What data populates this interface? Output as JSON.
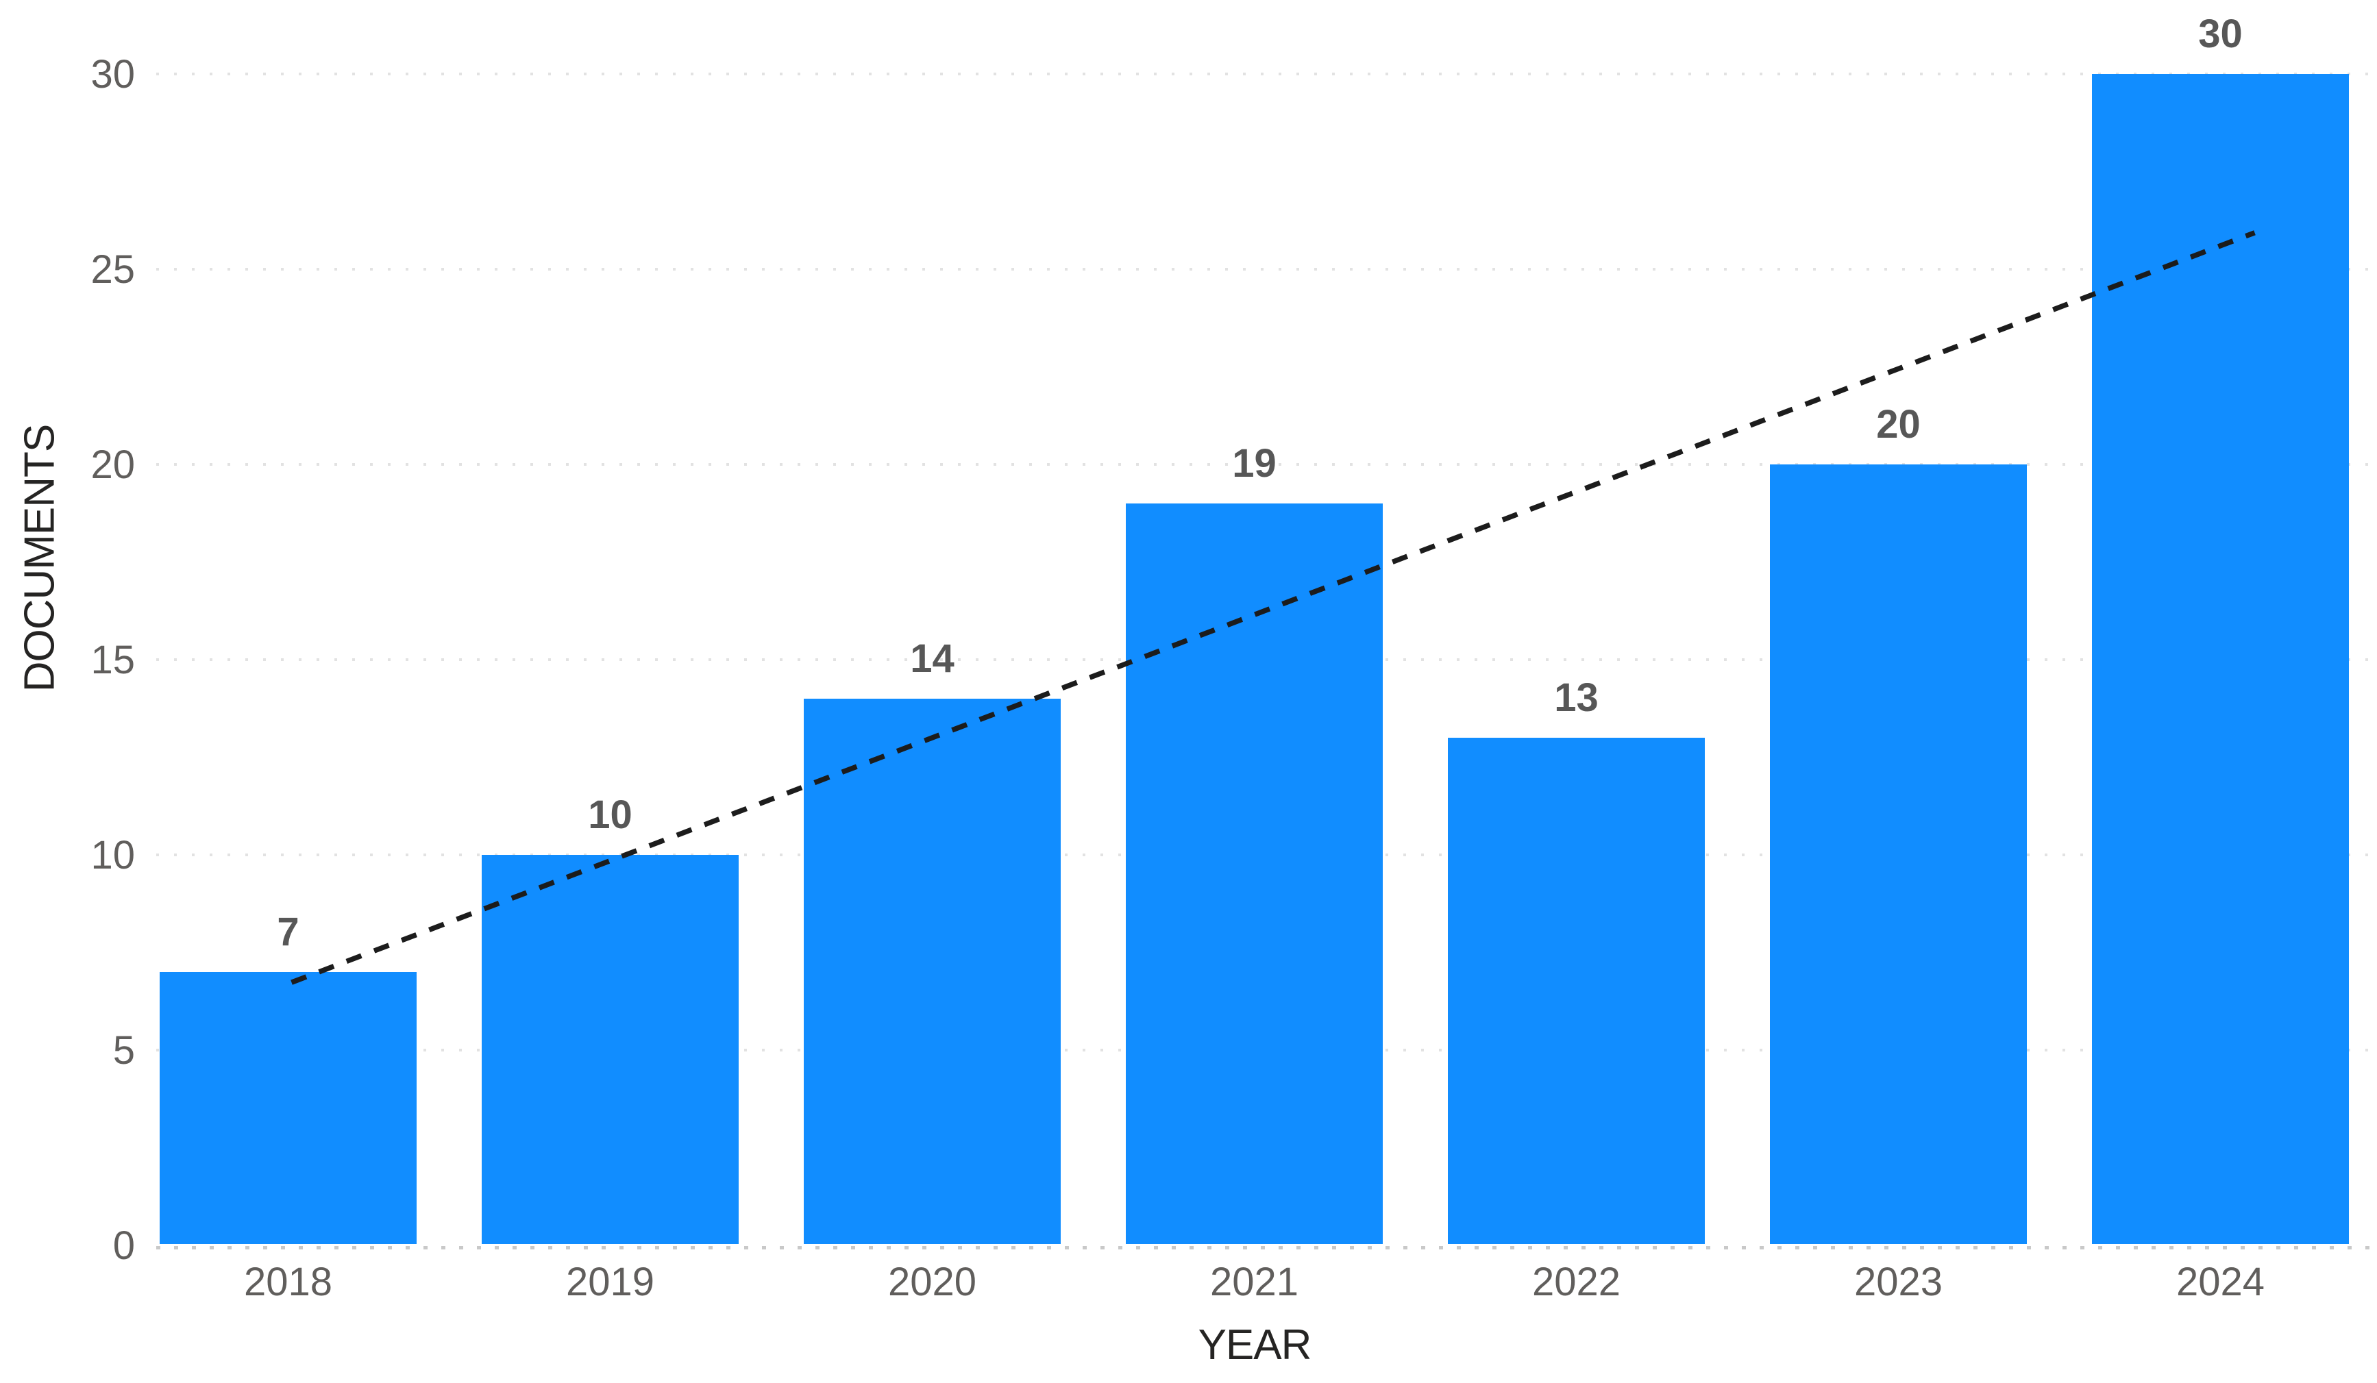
{
  "chart_data": {
    "type": "bar",
    "title": "",
    "categories": [
      "2018",
      "2019",
      "2020",
      "2021",
      "2022",
      "2023",
      "2024"
    ],
    "values": [
      7,
      10,
      14,
      19,
      13,
      20,
      30
    ],
    "series": [
      {
        "name": "Documents",
        "values": [
          7,
          10,
          14,
          19,
          13,
          20,
          30
        ]
      }
    ],
    "data_labels": [
      "7",
      "10",
      "14",
      "19",
      "13",
      "20",
      "30"
    ],
    "xlabel": "YEAR",
    "ylabel": "DOCUMENTS",
    "ylim": [
      0,
      30
    ],
    "yticks": [
      0,
      5,
      10,
      15,
      20,
      25,
      30
    ],
    "ytick_labels": [
      "0",
      "5",
      "10",
      "15",
      "20",
      "25",
      "30"
    ],
    "grid": "horizontal-dotted",
    "legend": "none",
    "trendline": {
      "style": "dashed",
      "start_value": 6.7,
      "end_value": 25.6
    }
  },
  "colors": {
    "bar": "#118DFF",
    "trendline": "#1C1C1C",
    "gridline": "#E2E2E2",
    "baseline": "#C9C9C9",
    "tick_text": "#605E5C",
    "data_label_text": "#575757",
    "axis_title_text": "#252423",
    "background": "#FFFFFF"
  }
}
